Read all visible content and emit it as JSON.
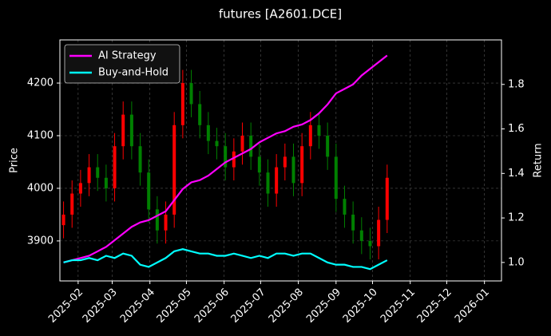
{
  "chart_data": {
    "type": "candlestick",
    "title": "futures [A2601.DCE]",
    "ylabel": "Price",
    "y2label": "Return",
    "x": [
      "2025-01-20",
      "2025-01-27",
      "2025-02-03",
      "2025-02-10",
      "2025-02-17",
      "2025-02-24",
      "2025-03-03",
      "2025-03-10",
      "2025-03-17",
      "2025-03-24",
      "2025-03-31",
      "2025-04-07",
      "2025-04-14",
      "2025-04-21",
      "2025-04-28",
      "2025-05-05",
      "2025-05-12",
      "2025-05-19",
      "2025-05-26",
      "2025-06-02",
      "2025-06-09",
      "2025-06-16",
      "2025-06-23",
      "2025-06-30",
      "2025-07-07",
      "2025-07-14",
      "2025-07-21",
      "2025-07-28",
      "2025-08-04",
      "2025-08-11",
      "2025-08-18",
      "2025-08-25",
      "2025-09-01",
      "2025-09-08",
      "2025-09-15",
      "2025-09-22",
      "2025-09-29",
      "2025-10-06",
      "2025-10-13"
    ],
    "open": [
      3930,
      3950,
      3990,
      4010,
      4040,
      4020,
      4000,
      4080,
      4140,
      4080,
      4030,
      3960,
      3920,
      3950,
      4120,
      4200,
      4160,
      4120,
      4090,
      4080,
      4040,
      4070,
      4100,
      4060,
      4030,
      3990,
      4040,
      4060,
      4010,
      4080,
      4120,
      4100,
      4060,
      3980,
      3950,
      3920,
      3900,
      3890,
      3940
    ],
    "high": [
      3975,
      4015,
      4035,
      4065,
      4065,
      4045,
      4105,
      4165,
      4165,
      4105,
      4055,
      3985,
      3975,
      4145,
      4225,
      4225,
      4185,
      4145,
      4115,
      4105,
      4095,
      4125,
      4125,
      4085,
      4055,
      4065,
      4085,
      4085,
      4105,
      4145,
      4145,
      4125,
      4085,
      4005,
      3975,
      3945,
      3925,
      3965,
      4045
    ],
    "low": [
      3905,
      3925,
      3965,
      3985,
      3995,
      3975,
      3975,
      4055,
      4055,
      4005,
      3935,
      3895,
      3895,
      3925,
      4095,
      4135,
      4095,
      4065,
      4055,
      4015,
      4015,
      4045,
      4035,
      4005,
      3965,
      3965,
      4015,
      3985,
      3985,
      4055,
      4075,
      4035,
      3955,
      3925,
      3895,
      3875,
      3865,
      3865,
      3915
    ],
    "close": [
      3950,
      3990,
      4010,
      4040,
      4020,
      4000,
      4080,
      4140,
      4080,
      4030,
      3960,
      3920,
      3950,
      4120,
      4200,
      4160,
      4120,
      4090,
      4080,
      4040,
      4070,
      4100,
      4060,
      4030,
      3990,
      4040,
      4060,
      4010,
      4080,
      4120,
      4100,
      4060,
      3980,
      3950,
      3920,
      3900,
      3890,
      3940,
      4020
    ],
    "up_color": "#ff0000",
    "down_color": "#008000",
    "series": [
      {
        "name": "AI Strategy",
        "color": "#ff00ff",
        "axis": "y2",
        "values": [
          1.0,
          1.01,
          1.02,
          1.03,
          1.05,
          1.07,
          1.1,
          1.13,
          1.16,
          1.18,
          1.19,
          1.21,
          1.23,
          1.28,
          1.33,
          1.36,
          1.37,
          1.39,
          1.42,
          1.45,
          1.47,
          1.49,
          1.51,
          1.54,
          1.56,
          1.58,
          1.59,
          1.61,
          1.62,
          1.64,
          1.67,
          1.71,
          1.76,
          1.78,
          1.8,
          1.84,
          1.87,
          1.9,
          1.93
        ]
      },
      {
        "name": "Buy-and-Hold",
        "color": "#00ffff",
        "axis": "y2",
        "values": [
          1.0,
          1.01,
          1.01,
          1.02,
          1.01,
          1.03,
          1.02,
          1.04,
          1.03,
          0.99,
          0.98,
          1.0,
          1.02,
          1.05,
          1.06,
          1.05,
          1.04,
          1.04,
          1.03,
          1.03,
          1.04,
          1.03,
          1.02,
          1.03,
          1.02,
          1.04,
          1.04,
          1.03,
          1.04,
          1.04,
          1.02,
          1.0,
          0.99,
          0.99,
          0.98,
          0.98,
          0.97,
          0.99,
          1.01
        ]
      }
    ],
    "xlim": [
      "2025-01-17",
      "2026-01-15"
    ],
    "xticks": [
      {
        "value": "2025-02-01",
        "label": "2025-02"
      },
      {
        "value": "2025-03-01",
        "label": "2025-03"
      },
      {
        "value": "2025-04-01",
        "label": "2025-04"
      },
      {
        "value": "2025-05-01",
        "label": "2025-05"
      },
      {
        "value": "2025-06-01",
        "label": "2025-06"
      },
      {
        "value": "2025-07-01",
        "label": "2025-07"
      },
      {
        "value": "2025-08-01",
        "label": "2025-08"
      },
      {
        "value": "2025-09-01",
        "label": "2025-09"
      },
      {
        "value": "2025-10-01",
        "label": "2025-10"
      },
      {
        "value": "2025-11-01",
        "label": "2025-11"
      },
      {
        "value": "2025-12-01",
        "label": "2025-12"
      },
      {
        "value": "2026-01-01",
        "label": "2026-01"
      }
    ],
    "ylim": [
      3824,
      4282
    ],
    "yticks": [
      3900,
      4000,
      4100,
      4200
    ],
    "y2lim": [
      0.917,
      2.0
    ],
    "y2ticks": [
      {
        "value": 1.0,
        "label": "1.0"
      },
      {
        "value": 1.2,
        "label": "1.2"
      },
      {
        "value": 1.4,
        "label": "1.4"
      },
      {
        "value": 1.6,
        "label": "1.6"
      },
      {
        "value": 1.8,
        "label": "1.8"
      }
    ],
    "grid": true,
    "legend": "upper left"
  }
}
